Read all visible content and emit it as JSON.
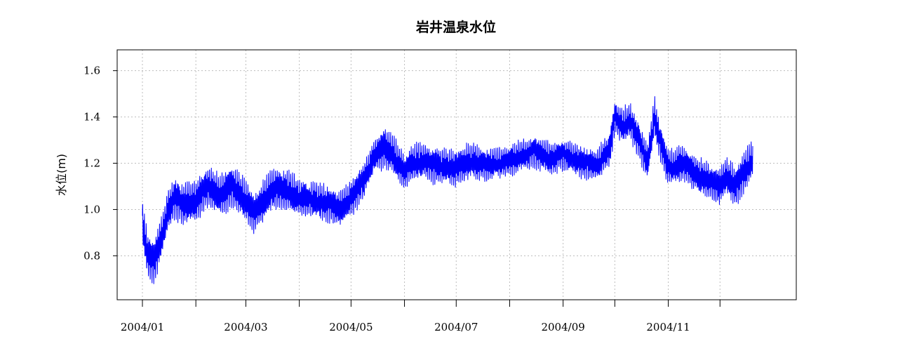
{
  "chart_data": {
    "type": "line",
    "title": "岩井温泉水位",
    "ylabel": "水位(m)",
    "xlabel": "",
    "xlim": [
      "2004-01-01",
      "2004-12-31"
    ],
    "ylim": [
      0.61,
      1.69
    ],
    "yticks": [
      0.8,
      1.0,
      1.2,
      1.4,
      1.6
    ],
    "x_ticks": [
      "2004-01-01",
      "2004-02-01",
      "2004-03-01",
      "2004-04-01",
      "2004-05-01",
      "2004-06-01",
      "2004-07-01",
      "2004-08-01",
      "2004-09-01",
      "2004-10-01",
      "2004-11-01",
      "2004-12-01"
    ],
    "x_tick_labels": [
      {
        "date": "2004-01-01",
        "label": "2004/01"
      },
      {
        "date": "2004-03-01",
        "label": "2004/03"
      },
      {
        "date": "2004-05-01",
        "label": "2004/05"
      },
      {
        "date": "2004-07-01",
        "label": "2004/07"
      },
      {
        "date": "2004-09-01",
        "label": "2004/09"
      },
      {
        "date": "2004-11-01",
        "label": "2004/11"
      }
    ],
    "grid": true,
    "series": [
      {
        "color": "#0000ff",
        "x": [
          "2004-01-01",
          "2004-01-04",
          "2004-01-08",
          "2004-01-12",
          "2004-01-16",
          "2004-01-20",
          "2004-01-25",
          "2004-02-01",
          "2004-02-08",
          "2004-02-15",
          "2004-02-22",
          "2004-03-01",
          "2004-03-05",
          "2004-03-10",
          "2004-03-15",
          "2004-03-20",
          "2004-03-25",
          "2004-04-01",
          "2004-04-10",
          "2004-04-20",
          "2004-04-25",
          "2004-05-01",
          "2004-05-08",
          "2004-05-15",
          "2004-05-20",
          "2004-05-25",
          "2004-06-01",
          "2004-06-05",
          "2004-06-12",
          "2004-06-20",
          "2004-06-30",
          "2004-07-10",
          "2004-07-20",
          "2004-08-01",
          "2004-08-15",
          "2004-08-25",
          "2004-09-01",
          "2004-09-10",
          "2004-09-20",
          "2004-09-28",
          "2004-10-01",
          "2004-10-05",
          "2004-10-10",
          "2004-10-15",
          "2004-10-20",
          "2004-10-24",
          "2004-10-27",
          "2004-11-01",
          "2004-11-10",
          "2004-11-20",
          "2004-11-30",
          "2004-12-05",
          "2004-12-10",
          "2004-12-15",
          "2004-12-20"
        ],
        "y": [
          0.94,
          0.8,
          0.78,
          0.88,
          1.0,
          1.05,
          1.02,
          1.04,
          1.1,
          1.06,
          1.1,
          1.04,
          0.99,
          1.02,
          1.08,
          1.09,
          1.08,
          1.05,
          1.04,
          1.02,
          1.0,
          1.05,
          1.12,
          1.24,
          1.27,
          1.24,
          1.16,
          1.2,
          1.21,
          1.19,
          1.18,
          1.21,
          1.19,
          1.21,
          1.25,
          1.22,
          1.24,
          1.21,
          1.19,
          1.26,
          1.4,
          1.36,
          1.38,
          1.3,
          1.2,
          1.4,
          1.3,
          1.18,
          1.2,
          1.14,
          1.1,
          1.14,
          1.1,
          1.16,
          1.22
        ],
        "amplitude": [
          0.09,
          0.09,
          0.09,
          0.08,
          0.08,
          0.08,
          0.08,
          0.08,
          0.08,
          0.08,
          0.08,
          0.08,
          0.08,
          0.08,
          0.08,
          0.08,
          0.08,
          0.07,
          0.07,
          0.07,
          0.07,
          0.07,
          0.07,
          0.07,
          0.08,
          0.08,
          0.07,
          0.07,
          0.07,
          0.07,
          0.07,
          0.07,
          0.06,
          0.06,
          0.06,
          0.06,
          0.06,
          0.06,
          0.06,
          0.07,
          0.07,
          0.07,
          0.07,
          0.07,
          0.07,
          0.08,
          0.07,
          0.07,
          0.07,
          0.07,
          0.07,
          0.07,
          0.08,
          0.08,
          0.07
        ]
      }
    ],
    "data_end": "2004-12-20"
  }
}
